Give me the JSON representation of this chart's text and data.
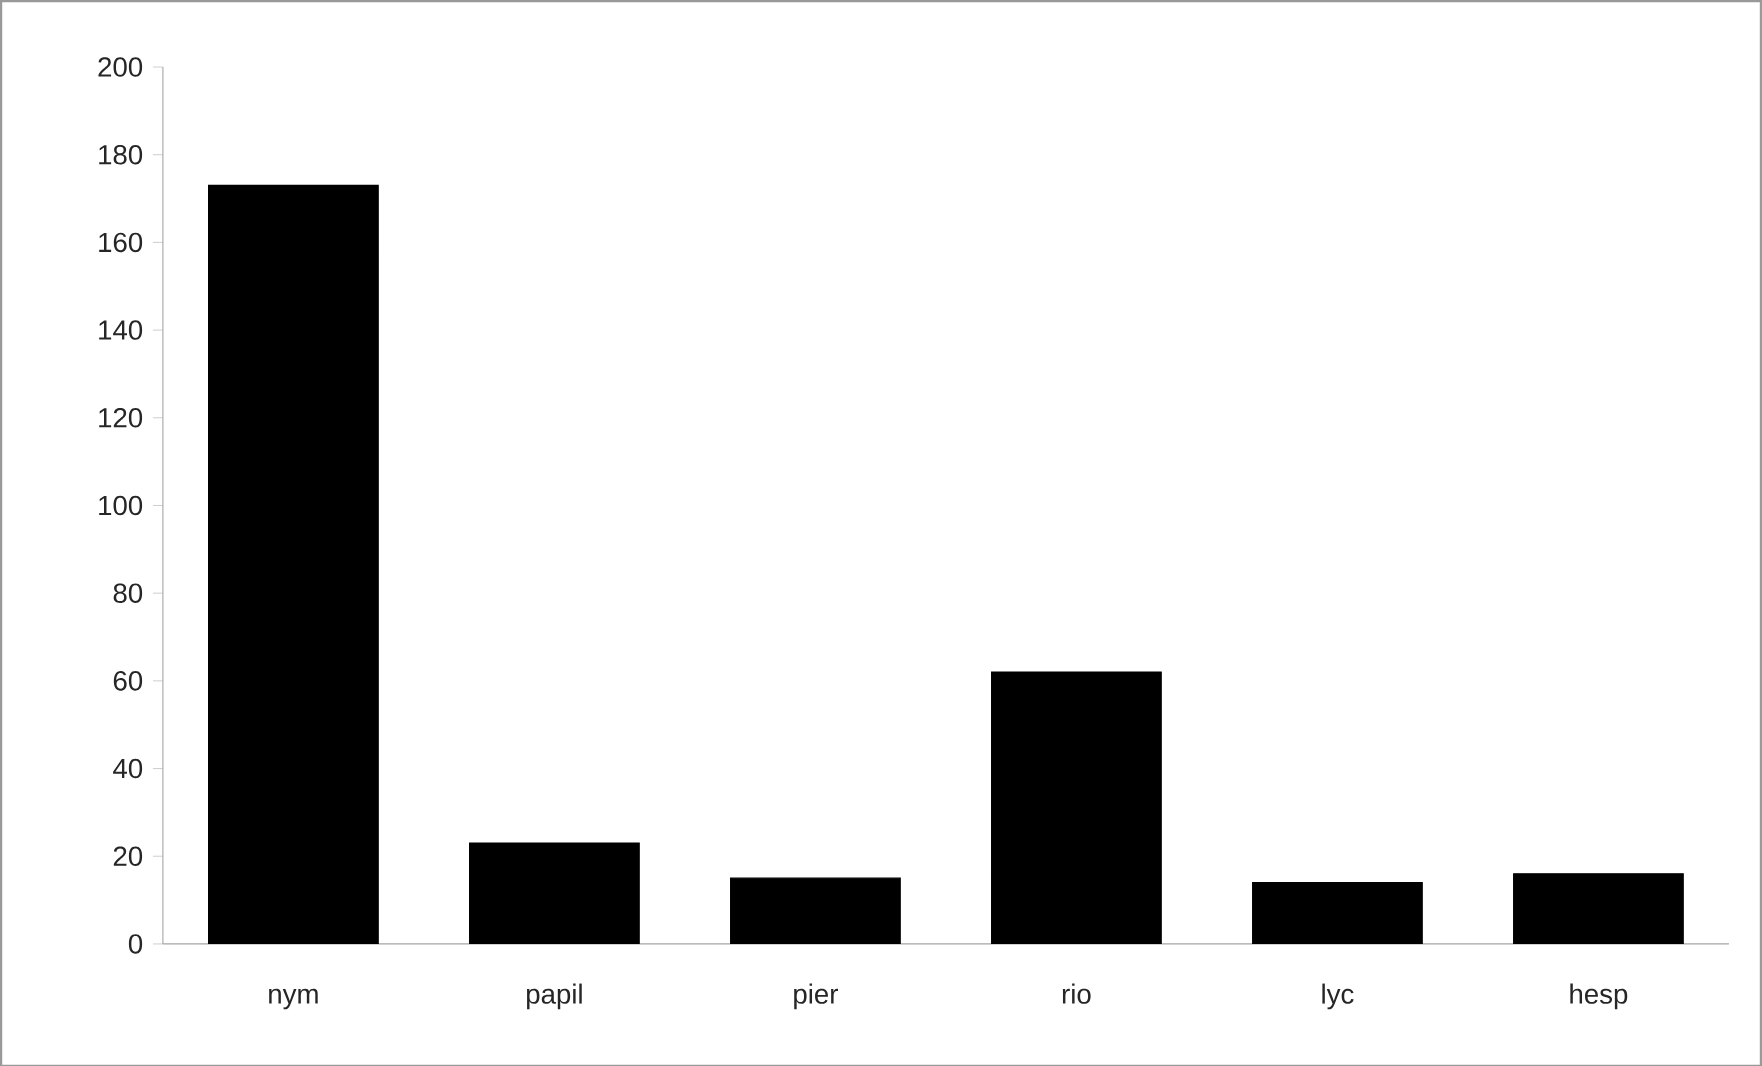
{
  "chart_data": {
    "type": "bar",
    "categories": [
      "nym",
      "papil",
      "pier",
      "rio",
      "lyc",
      "hesp"
    ],
    "values": [
      173,
      23,
      15,
      62,
      14,
      16
    ],
    "color": "#000000",
    "ylim": [
      0,
      200
    ],
    "yticks": [
      0,
      20,
      40,
      60,
      80,
      100,
      120,
      140,
      160,
      180,
      200
    ],
    "grid": false
  }
}
